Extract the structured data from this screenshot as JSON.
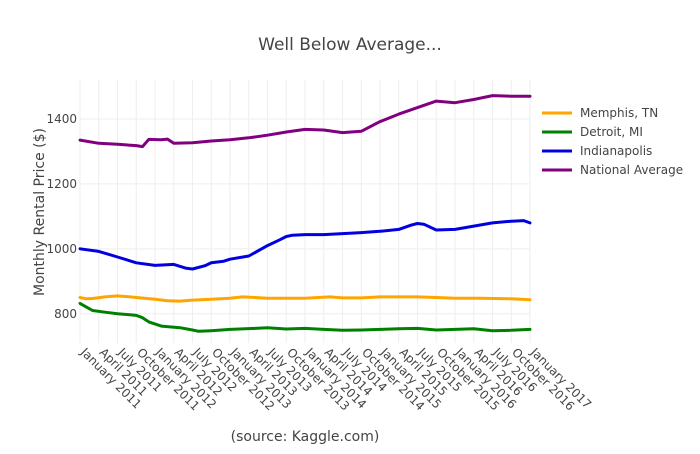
{
  "chart_data": {
    "type": "line",
    "title": "Well Below Average...",
    "xlabel": "(source: Kaggle.com)",
    "ylabel": "Monthly Rental Price ($)",
    "x_start": "January 2011",
    "x_end": "January 2017",
    "ylim": [
      710,
      1520
    ],
    "yticks": [
      800,
      1000,
      1200,
      1400
    ],
    "xtick_labels": [
      "January 2011",
      "April 2011",
      "July 2011",
      "October 2011",
      "January 2012",
      "April 2012",
      "July 2012",
      "October 2012",
      "January 2013",
      "April 2013",
      "July 2013",
      "October 2013",
      "January 2014",
      "April 2014",
      "July 2014",
      "October 2014",
      "January 2015",
      "April 2015",
      "July 2015",
      "October 2015",
      "January 2016",
      "April 2016",
      "July 2016",
      "October 2016",
      "January 2017"
    ],
    "grid": true,
    "legend_position": "top-right",
    "series": [
      {
        "name": "Memphis, TN",
        "color": "#FFA500",
        "x": [
          "January 2011",
          "February 2011",
          "March 2011",
          "May 2011",
          "July 2011",
          "September 2011",
          "January 2012",
          "March 2012",
          "May 2012",
          "July 2012",
          "October 2012",
          "January 2013",
          "March 2013",
          "May 2013",
          "July 2013",
          "January 2014",
          "May 2014",
          "July 2014",
          "October 2014",
          "January 2015",
          "May 2015",
          "July 2015",
          "October 2015",
          "January 2016",
          "May 2016",
          "October 2016",
          "January 2017"
        ],
        "values": [
          850,
          846,
          847,
          852,
          855,
          852,
          845,
          840,
          839,
          842,
          845,
          848,
          852,
          850,
          848,
          848,
          852,
          849,
          849,
          852,
          852,
          852,
          850,
          848,
          848,
          846,
          843
        ]
      },
      {
        "name": "Detroit, MI",
        "color": "#008000",
        "x": [
          "January 2011",
          "March 2011",
          "May 2011",
          "July 2011",
          "September 2011",
          "October 2011",
          "November 2011",
          "December 2011",
          "February 2012",
          "May 2012",
          "July 2012",
          "August 2012",
          "October 2012",
          "January 2013",
          "May 2013",
          "July 2013",
          "October 2013",
          "January 2014",
          "April 2014",
          "July 2014",
          "October 2014",
          "January 2015",
          "April 2015",
          "July 2015",
          "October 2015",
          "January 2016",
          "April 2016",
          "July 2016",
          "October 2016",
          "January 2017"
        ],
        "values": [
          832,
          810,
          805,
          800,
          797,
          795,
          788,
          775,
          762,
          757,
          750,
          746,
          748,
          752,
          755,
          757,
          753,
          755,
          752,
          749,
          750,
          752,
          754,
          755,
          750,
          752,
          754,
          748,
          749,
          752
        ]
      },
      {
        "name": "Indianapolis",
        "color": "#0000E0",
        "x": [
          "January 2011",
          "April 2011",
          "July 2011",
          "October 2011",
          "January 2012",
          "April 2012",
          "June 2012",
          "July 2012",
          "September 2012",
          "October 2012",
          "December 2012",
          "January 2013",
          "April 2013",
          "July 2013",
          "September 2013",
          "October 2013",
          "November 2013",
          "January 2014",
          "April 2014",
          "July 2014",
          "October 2014",
          "January 2015",
          "April 2015",
          "June 2015",
          "July 2015",
          "August 2015",
          "October 2015",
          "January 2016",
          "April 2016",
          "July 2016",
          "October 2016",
          "December 2016",
          "January 2017"
        ],
        "values": [
          1000,
          992,
          975,
          957,
          949,
          952,
          940,
          938,
          948,
          957,
          962,
          968,
          978,
          1010,
          1028,
          1038,
          1042,
          1044,
          1044,
          1047,
          1050,
          1054,
          1060,
          1073,
          1078,
          1076,
          1058,
          1060,
          1070,
          1080,
          1085,
          1087,
          1080
        ]
      },
      {
        "name": "National Average",
        "color": "#800080",
        "x": [
          "January 2011",
          "April 2011",
          "July 2011",
          "October 2011",
          "November 2011",
          "December 2011",
          "February 2012",
          "March 2012",
          "April 2012",
          "July 2012",
          "October 2012",
          "January 2013",
          "April 2013",
          "July 2013",
          "October 2013",
          "January 2014",
          "April 2014",
          "July 2014",
          "October 2014",
          "January 2015",
          "April 2015",
          "July 2015",
          "October 2015",
          "January 2016",
          "April 2016",
          "July 2016",
          "October 2016",
          "January 2017"
        ],
        "values": [
          1335,
          1325,
          1322,
          1318,
          1315,
          1337,
          1336,
          1338,
          1325,
          1327,
          1332,
          1336,
          1342,
          1350,
          1360,
          1368,
          1366,
          1358,
          1362,
          1392,
          1415,
          1435,
          1455,
          1450,
          1460,
          1472,
          1470,
          1470
        ]
      }
    ]
  }
}
